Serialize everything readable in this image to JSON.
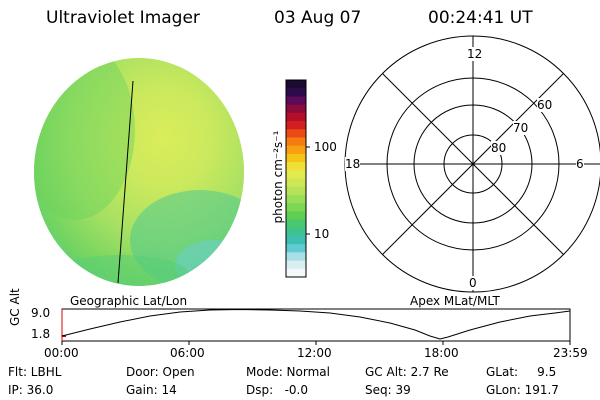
{
  "header": {
    "instrument": "Ultraviolet Imager",
    "date": "03 Aug 07",
    "time": "00:24:41 UT"
  },
  "colorbar": {
    "label": "photon cm⁻²s⁻¹",
    "ticks": [
      "100",
      "10"
    ],
    "colors": [
      "#1b0b2e",
      "#2d0b4a",
      "#5a0b5a",
      "#8b0b3b",
      "#b40f2a",
      "#d21e1e",
      "#ea4a16",
      "#f47c12",
      "#f8a012",
      "#f5c515",
      "#eee037",
      "#e2ea4e",
      "#cfe755",
      "#b6e25a",
      "#9ade57",
      "#7dd654",
      "#5fcf52",
      "#49c86f",
      "#3ec38f",
      "#3cbfb0",
      "#62cbd2",
      "#a9dfe6",
      "#d9eef1",
      "#f4f8f8"
    ]
  },
  "polar": {
    "mlt_labels": [
      "12",
      "18",
      "6",
      "0"
    ],
    "lat_labels": [
      "60",
      "70",
      "80"
    ]
  },
  "altplot": {
    "ylabel": "GC Alt",
    "yticks": [
      "9.0",
      "1.8"
    ],
    "left_title": "Geographic Lat/Lon",
    "right_title": "Apex MLat/MLT",
    "xticks": [
      "00:00",
      "06:00",
      "12:00",
      "18:00",
      "23:59"
    ]
  },
  "info": {
    "flt": "Flt: LBHL",
    "ip": "IP: 36.0",
    "door": "Door: Open",
    "gain": "Gain: 14",
    "mode": "Mode: Normal",
    "dsp": "Dsp:   -0.0",
    "gcalt": "GC Alt: 2.7 Re",
    "seq": "Seq: 39",
    "glat": "GLat:     9.5",
    "glon": "GLon: 191.7"
  }
}
